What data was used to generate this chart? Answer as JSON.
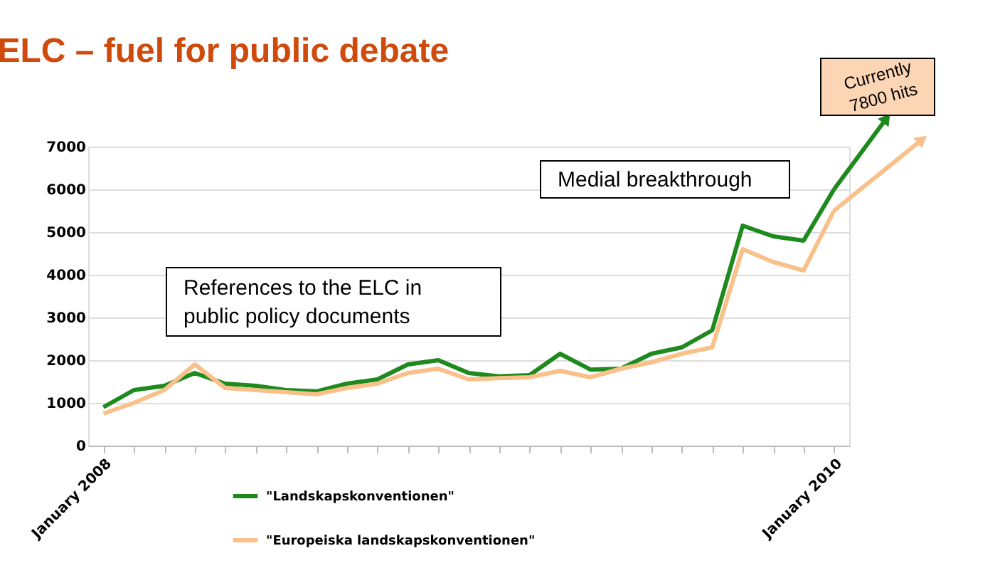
{
  "chart_data": {
    "type": "line",
    "title": "ELC – fuel for public debate",
    "categories": [
      "January 2008",
      null,
      null,
      null,
      null,
      null,
      null,
      null,
      null,
      null,
      null,
      null,
      null,
      null,
      null,
      null,
      null,
      null,
      null,
      null,
      null,
      null,
      null,
      null,
      "January 2010"
    ],
    "series": [
      {
        "name": "\"Landskapskonventionen\"",
        "color": "#1e8a1e",
        "values": [
          900,
          1300,
          1400,
          1700,
          1450,
          1400,
          1300,
          1270,
          1450,
          1550,
          1900,
          2000,
          1700,
          1620,
          1650,
          2150,
          1780,
          1800,
          2150,
          2300,
          2700,
          5150,
          4900,
          4800,
          6000
        ]
      },
      {
        "name": "\"Europeiska landskapskonventionen\"",
        "color": "#f9c08a",
        "values": [
          750,
          1000,
          1300,
          1900,
          1350,
          1300,
          1250,
          1200,
          1350,
          1450,
          1700,
          1800,
          1550,
          1580,
          1600,
          1750,
          1600,
          1800,
          1950,
          2150,
          2300,
          4600,
          4300,
          4100,
          5500
        ]
      }
    ],
    "ylim": [
      0,
      7000
    ],
    "yticks": [
      0,
      1000,
      2000,
      3000,
      4000,
      5000,
      6000,
      7000
    ],
    "grid": "y",
    "legend": "bottom",
    "marker": "none",
    "line_style": "solid",
    "annotations": [
      "References to the ELC in public policy documents",
      "Medial breakthrough",
      "Currently 7800 hits"
    ]
  }
}
